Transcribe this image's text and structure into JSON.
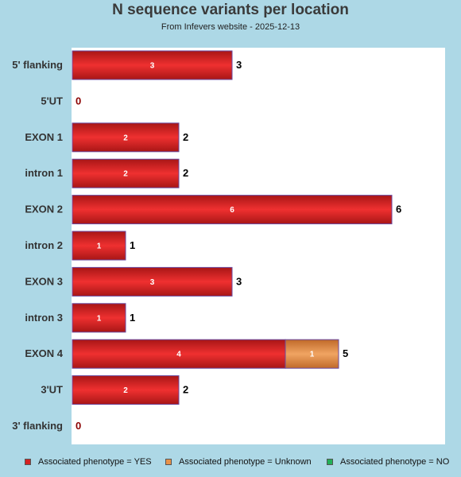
{
  "chart_data": {
    "type": "bar",
    "orientation": "horizontal",
    "stacked": true,
    "title": "N sequence variants per location",
    "subtitle": "From Infevers website - 2025-12-13",
    "categories": [
      "5' flanking",
      "5'UT",
      "EXON 1",
      "intron 1",
      "EXON 2",
      "intron 2",
      "EXON 3",
      "intron 3",
      "EXON 4",
      "3'UT",
      "3' flanking"
    ],
    "series": [
      {
        "name": "Associated phenotype = YES",
        "color": "#d42222",
        "values": [
          3,
          0,
          2,
          2,
          6,
          1,
          3,
          1,
          4,
          2,
          0
        ]
      },
      {
        "name": "Associated phenotype = Unknown",
        "color": "#e8924a",
        "values": [
          0,
          0,
          0,
          0,
          0,
          0,
          0,
          0,
          1,
          0,
          0
        ]
      },
      {
        "name": "Associated phenotype = NO",
        "color": "#22b058",
        "values": [
          0,
          0,
          0,
          0,
          0,
          0,
          0,
          0,
          0,
          0,
          0
        ]
      }
    ],
    "totals": [
      3,
      0,
      2,
      2,
      6,
      1,
      3,
      1,
      5,
      2,
      0
    ],
    "xlim": [
      0,
      7
    ],
    "grid": false,
    "legend_position": "bottom"
  }
}
